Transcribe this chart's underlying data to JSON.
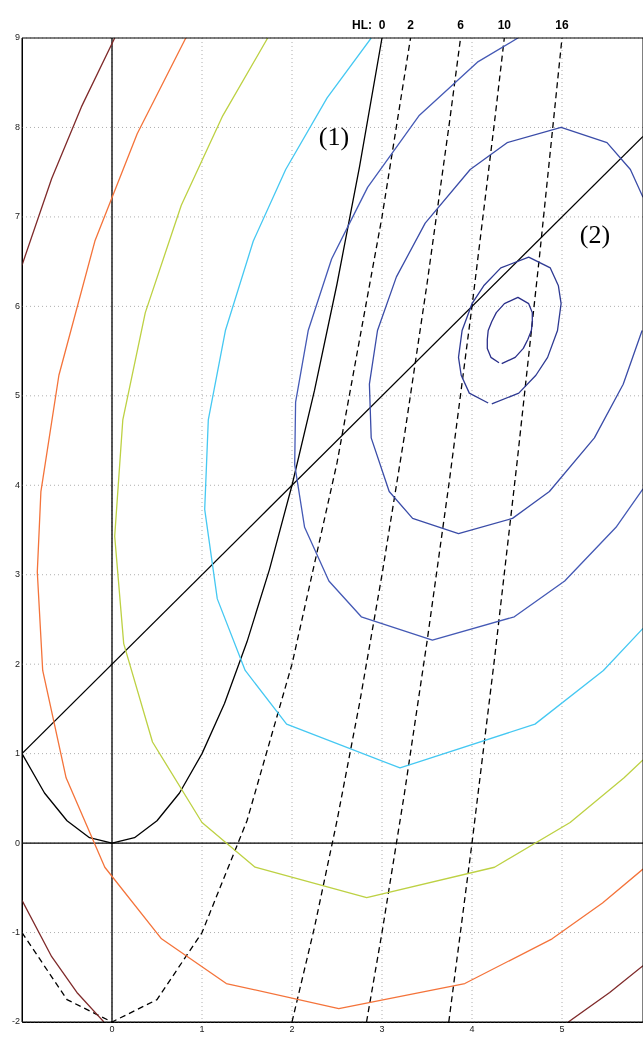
{
  "chart_data": {
    "type": "line",
    "xlim": [
      -1,
      5.9
    ],
    "ylim": [
      -2,
      9
    ],
    "xticks": [
      0,
      1,
      2,
      3,
      4,
      5
    ],
    "yticks": [
      -2,
      -1,
      0,
      1,
      2,
      3,
      4,
      5,
      6,
      7,
      8,
      9
    ],
    "grid": true,
    "marker": "none",
    "series": [
      {
        "color": "#2a2f8a",
        "x": [
          4.33,
          4.48,
          4.57,
          4.62,
          4.66,
          4.67,
          4.67,
          4.63,
          4.51,
          4.36,
          4.27,
          4.22,
          4.18,
          4.17,
          4.17,
          4.21,
          4.3
        ],
        "values": [
          5.36,
          5.43,
          5.53,
          5.63,
          5.73,
          5.83,
          5.93,
          6.03,
          6.1,
          6.03,
          5.93,
          5.83,
          5.73,
          5.63,
          5.53,
          5.43,
          5.37
        ]
      },
      {
        "color": "#2e3a93",
        "x": [
          4.22,
          4.52,
          4.71,
          4.84,
          4.95,
          4.99,
          4.96,
          4.87,
          4.63,
          4.32,
          4.13,
          4.0,
          3.89,
          3.85,
          3.88,
          3.97,
          4.18
        ],
        "values": [
          4.91,
          5.03,
          5.23,
          5.43,
          5.73,
          6.03,
          6.23,
          6.43,
          6.55,
          6.43,
          6.23,
          6.03,
          5.73,
          5.43,
          5.23,
          5.03,
          4.92
        ]
      },
      {
        "color": "#3a4ca8",
        "x": [
          5.9,
          5.76,
          5.5,
          4.99,
          4.39,
          3.98,
          3.48,
          3.16,
          2.95,
          2.86,
          2.88,
          3.08,
          3.34,
          3.85,
          4.45,
          4.86,
          5.36,
          5.68,
          5.89
        ],
        "values": [
          7.22,
          7.53,
          7.83,
          8.0,
          7.83,
          7.53,
          6.93,
          6.33,
          5.73,
          5.13,
          4.53,
          3.93,
          3.63,
          3.46,
          3.63,
          3.93,
          4.53,
          5.13,
          5.73
        ]
      },
      {
        "color": "#4459b5",
        "x": [
          4.51,
          4.06,
          3.41,
          2.84,
          2.44,
          2.18,
          2.04,
          2.03,
          2.14,
          2.41,
          2.77,
          3.56,
          4.47,
          5.03,
          5.6,
          5.9
        ],
        "values": [
          9.0,
          8.73,
          8.13,
          7.33,
          6.53,
          5.73,
          4.93,
          4.23,
          3.53,
          2.93,
          2.53,
          2.27,
          2.53,
          2.93,
          3.53,
          3.96
        ]
      },
      {
        "color": "#45c8f2",
        "x": [
          2.88,
          2.39,
          1.93,
          1.57,
          1.26,
          1.07,
          1.03,
          1.17,
          1.48,
          1.94,
          3.2,
          4.7,
          5.46,
          5.9
        ],
        "values": [
          9.0,
          8.33,
          7.53,
          6.73,
          5.73,
          4.73,
          3.73,
          2.73,
          1.93,
          1.33,
          0.84,
          1.33,
          1.93,
          2.4
        ]
      },
      {
        "color": "#bdd143",
        "x": [
          1.73,
          1.23,
          0.77,
          0.37,
          0.12,
          0.03,
          0.13,
          0.45,
          1.0,
          1.59,
          2.83,
          4.25,
          5.09,
          5.69,
          5.9
        ],
        "values": [
          9.0,
          8.13,
          7.13,
          5.93,
          4.73,
          3.43,
          2.23,
          1.13,
          0.23,
          -0.27,
          -0.61,
          -0.27,
          0.23,
          0.73,
          0.93
        ]
      },
      {
        "color": "#f4733a",
        "x": [
          0.82,
          0.28,
          -0.19,
          -0.59,
          -0.79,
          -0.83,
          -0.77,
          -0.51,
          -0.08,
          0.55,
          1.27,
          2.52,
          3.92,
          4.89,
          5.45,
          5.9
        ],
        "values": [
          9.0,
          7.93,
          6.73,
          5.23,
          3.93,
          3.03,
          1.93,
          0.73,
          -0.27,
          -1.07,
          -1.57,
          -1.85,
          -1.57,
          -1.07,
          -0.67,
          -0.29
        ]
      },
      {
        "color": "#7f2a2a",
        "x": [
          0.03,
          -0.34,
          -0.67,
          -1.0
        ],
        "values": [
          9.0,
          8.23,
          7.43,
          6.46
        ]
      },
      {
        "color": "#7f2a2a",
        "x": [
          -1.0,
          -0.67,
          -0.39,
          -0.09
        ],
        "values": [
          -0.64,
          -1.27,
          -1.67,
          -2.0
        ]
      },
      {
        "color": "#7f2a2a",
        "x": [
          5.07,
          5.53,
          5.9
        ],
        "values": [
          -2.0,
          -1.67,
          -1.37
        ]
      },
      {
        "color": "#000000",
        "x": [
          0,
          0
        ],
        "values": [
          -2,
          9
        ]
      },
      {
        "color": "#000000",
        "x": [
          -1,
          5.9
        ],
        "values": [
          0,
          0
        ]
      },
      {
        "name": "(1)",
        "color": "#000000",
        "x": [
          -1,
          -0.75,
          -0.5,
          -0.25,
          0,
          0.25,
          0.5,
          0.75,
          1,
          1.25,
          1.5,
          1.75,
          2,
          2.25,
          2.5,
          2.75,
          3
        ],
        "values": [
          1,
          0.56,
          0.25,
          0.06,
          0,
          0.06,
          0.25,
          0.56,
          1,
          1.56,
          2.25,
          3.06,
          4,
          5.06,
          6.25,
          7.56,
          9
        ]
      },
      {
        "name": "(2)",
        "color": "#000000",
        "x": [
          -1,
          5.9
        ],
        "values": [
          1,
          7.9
        ]
      },
      {
        "color": "#000000",
        "line_style": "dashed",
        "x": [
          -1,
          -0.5,
          0,
          0.5,
          1,
          1.5,
          2,
          2.5,
          3,
          3.317
        ],
        "values": [
          -1,
          -1.75,
          -2,
          -1.75,
          -1,
          0.25,
          2,
          4.25,
          7,
          9.0
        ]
      },
      {
        "color": "#000000",
        "line_style": "dashed",
        "x": [
          2,
          2.25,
          2.5,
          2.75,
          3,
          3.25,
          3.5,
          3.75,
          3.873
        ],
        "values": [
          -2,
          -0.94,
          0.25,
          1.56,
          3,
          4.56,
          6.25,
          8.06,
          9.0
        ]
      },
      {
        "color": "#000000",
        "line_style": "dashed",
        "x": [
          2.828,
          3,
          3.25,
          3.5,
          3.75,
          4,
          4.25,
          4.359
        ],
        "values": [
          -2.0,
          -1,
          0.56,
          2.25,
          4.06,
          6,
          8.06,
          9.0
        ]
      },
      {
        "color": "#000000",
        "line_style": "dashed",
        "x": [
          3.742,
          4,
          4.25,
          4.5,
          4.75,
          5
        ],
        "values": [
          -2.0,
          0,
          2.06,
          4.25,
          6.56,
          9
        ]
      }
    ],
    "annotations": [
      "HL:",
      {
        "text": "0",
        "x": 3,
        "y": 9
      },
      {
        "text": "2",
        "x": 3.317,
        "y": 9
      },
      {
        "text": "6",
        "x": 3.873,
        "y": 9
      },
      {
        "text": "10",
        "x": 4.359,
        "y": 9
      },
      {
        "text": "16",
        "x": 5,
        "y": 9
      }
    ]
  }
}
